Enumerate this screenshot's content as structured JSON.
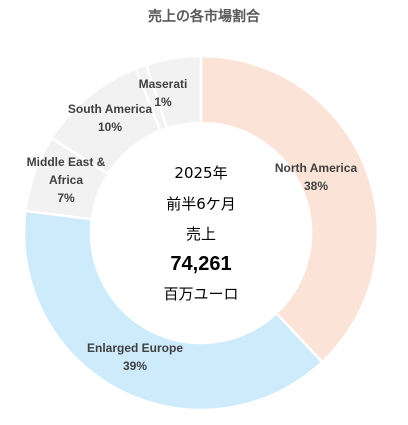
{
  "chart_data": {
    "type": "pie",
    "title": "売上の各市場割合",
    "center": {
      "line1": "2025年",
      "line2": "前半6ケ月",
      "line3": "売上",
      "value": "74,261",
      "unit": "百万ユーロ"
    },
    "slices": [
      {
        "name": "North America",
        "percent_label": "38%",
        "value": 38,
        "color": "#fbe3d8"
      },
      {
        "name": "Enlarged Europe",
        "percent_label": "39%",
        "value": 39,
        "color": "#cdebfb"
      },
      {
        "name": "Middle East & Africa",
        "name_lines": [
          "Middle East &",
          "Africa"
        ],
        "percent_label": "7%",
        "value": 7,
        "color": "#f2f2f2"
      },
      {
        "name": "South America",
        "percent_label": "10%",
        "value": 10,
        "color": "#f2f2f2"
      },
      {
        "name": "Maserati",
        "percent_label": "1%",
        "value": 1,
        "color": "#f2f2f2"
      },
      {
        "name": "",
        "percent_label": "",
        "value": 5,
        "color": "#f2f2f2"
      }
    ]
  }
}
